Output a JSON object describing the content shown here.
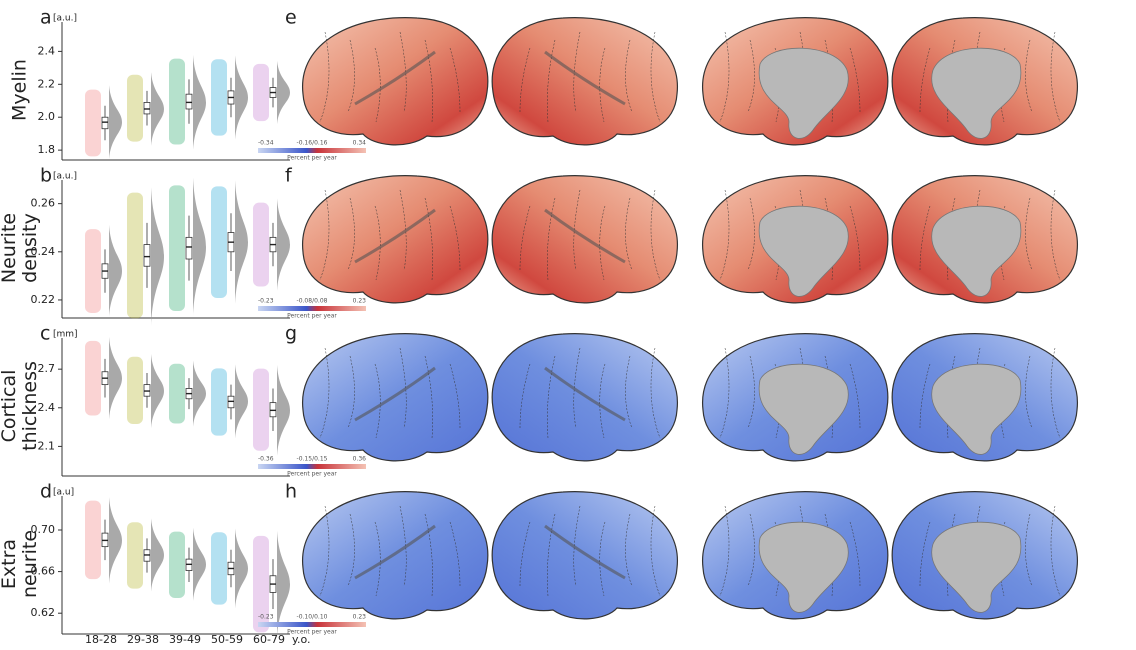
{
  "categories": [
    "18-28",
    "29-38",
    "39-49",
    "50-59",
    "60-79"
  ],
  "x_unit": "y.o.",
  "group_colors": [
    "#f08080",
    "#b5b52a",
    "#2ca86e",
    "#29a8d8",
    "#c77dd1"
  ],
  "panels": [
    {
      "letter": "a",
      "row_title": [
        "Myelin"
      ],
      "unit": "[a.u.]",
      "ylim": [
        1.74,
        2.53
      ],
      "yticks": [
        1.8,
        {
          "value": 2,
          "label": "2.0"
        },
        2.2,
        2.4
      ],
      "boxes": [
        {
          "q1": 1.93,
          "median": 1.97,
          "q3": 2.0
        },
        {
          "q1": 2.02,
          "median": 2.05,
          "q3": 2.09
        },
        {
          "q1": 2.05,
          "median": 2.09,
          "q3": 2.14
        },
        {
          "q1": 2.08,
          "median": 2.12,
          "q3": 2.16
        },
        {
          "q1": 2.12,
          "median": 2.15,
          "q3": 2.18
        }
      ]
    },
    {
      "letter": "b",
      "row_title": [
        "Neurite",
        "density"
      ],
      "unit": "[a.u.]",
      "ylim": [
        0.2125,
        0.2665
      ],
      "yticks": [
        0.22,
        0.24,
        0.26
      ],
      "boxes": [
        {
          "q1": 0.229,
          "median": 0.232,
          "q3": 0.235
        },
        {
          "q1": 0.234,
          "median": 0.238,
          "q3": 0.243
        },
        {
          "q1": 0.237,
          "median": 0.242,
          "q3": 0.246
        },
        {
          "q1": 0.24,
          "median": 0.244,
          "q3": 0.248
        },
        {
          "q1": 0.24,
          "median": 0.243,
          "q3": 0.246
        }
      ]
    },
    {
      "letter": "c",
      "row_title": [
        "Cortical",
        "thickness"
      ],
      "unit": "[mm]",
      "ylim": [
        1.87,
        2.88
      ],
      "yticks": [
        2.1,
        2.4,
        2.7
      ],
      "boxes": [
        {
          "q1": 2.58,
          "median": 2.63,
          "q3": 2.68
        },
        {
          "q1": 2.49,
          "median": 2.53,
          "q3": 2.58
        },
        {
          "q1": 2.47,
          "median": 2.51,
          "q3": 2.55
        },
        {
          "q1": 2.4,
          "median": 2.45,
          "q3": 2.49
        },
        {
          "q1": 2.33,
          "median": 2.38,
          "q3": 2.44
        }
      ]
    },
    {
      "letter": "d",
      "row_title": [
        "Extra",
        "neurite"
      ],
      "unit": "[a.u]",
      "ylim": [
        0.6,
        0.725
      ],
      "yticks": [
        0.62,
        0.66,
        {
          "value": 0.7,
          "label": "0.70"
        }
      ],
      "boxes": [
        {
          "q1": 0.684,
          "median": 0.69,
          "q3": 0.697
        },
        {
          "q1": 0.67,
          "median": 0.676,
          "q3": 0.681
        },
        {
          "q1": 0.661,
          "median": 0.667,
          "q3": 0.672
        },
        {
          "q1": 0.657,
          "median": 0.663,
          "q3": 0.669
        },
        {
          "q1": 0.64,
          "median": 0.648,
          "q3": 0.656
        }
      ]
    }
  ],
  "maps": [
    {
      "letter": "e",
      "colorbar": {
        "min": "-0.34",
        "mid": "-0.16/0.16",
        "max": "0.34",
        "label": "Percent per year"
      }
    },
    {
      "letter": "f",
      "colorbar": {
        "min": "-0.23",
        "mid": "-0.08/0.08",
        "max": "0.23",
        "label": "Percent per year"
      }
    },
    {
      "letter": "g",
      "colorbar": {
        "min": "-0.36",
        "mid": "-0.15/0.15",
        "max": "0.36",
        "label": "Percent per year"
      }
    },
    {
      "letter": "h",
      "colorbar": {
        "min": "-0.23",
        "mid": "-0.10/0.10",
        "max": "0.23",
        "label": "Percent per year"
      }
    }
  ]
}
